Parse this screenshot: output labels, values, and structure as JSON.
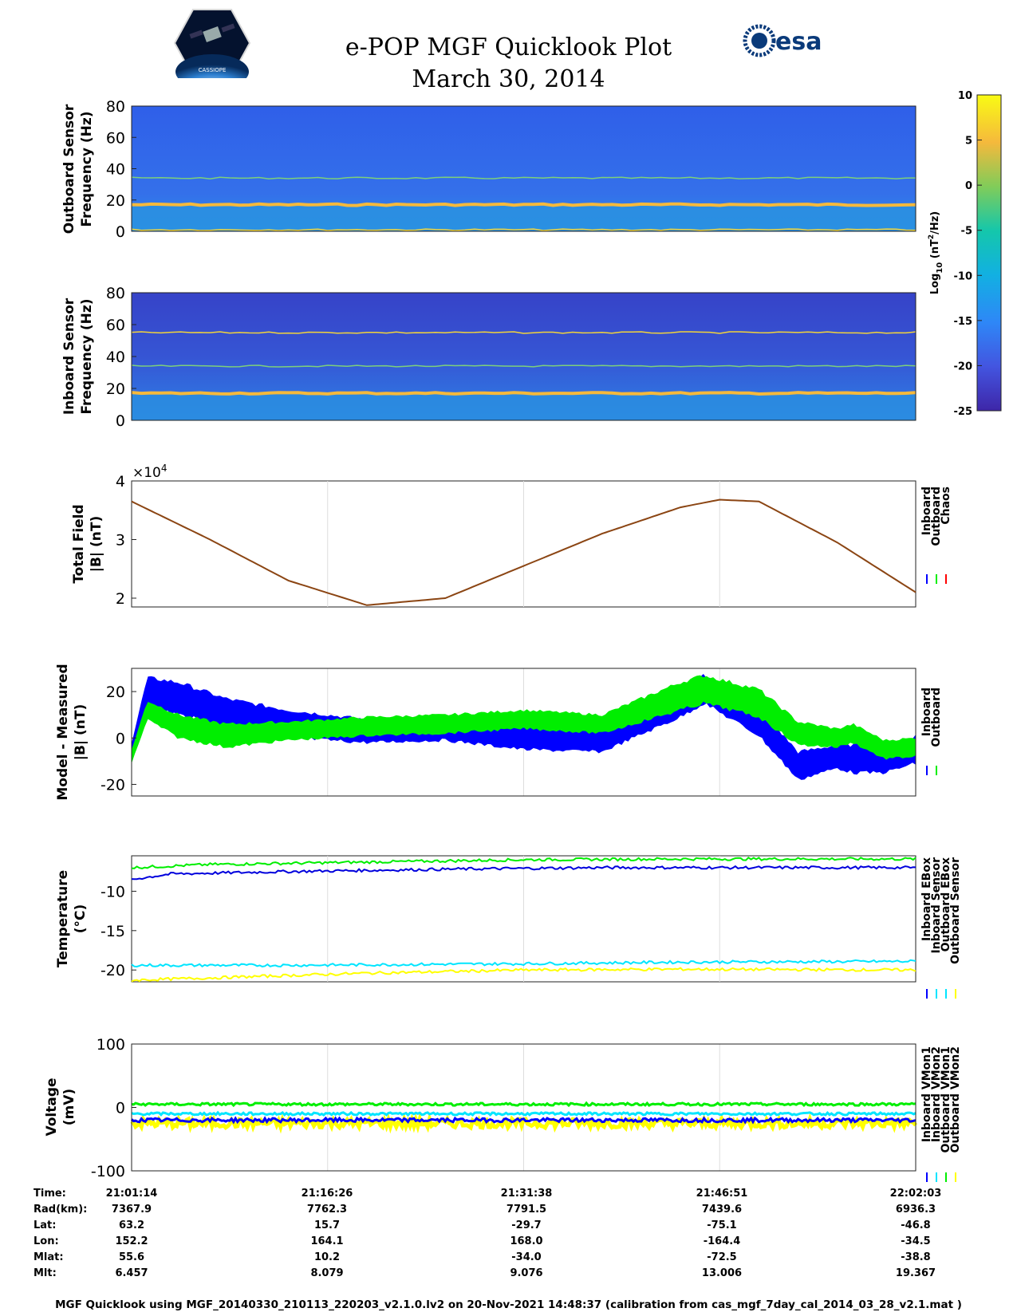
{
  "header": {
    "title_line1": "e-POP MGF Quicklook Plot",
    "title_line2": "March 30, 2014",
    "left_logo": "cassiope-logo",
    "left_logo_text": "CASSIOPE",
    "right_logo_text": "esa"
  },
  "colors": {
    "inboard": "#0000ff",
    "outboard": "#00ee00",
    "chaos": "#ff0000",
    "total_field_line": "#8b4513",
    "inboard_sensor_temp": "#0000dd",
    "outboard_sensor_temp": "#ffff00",
    "cyan": "#00e5ff"
  },
  "colorbar": {
    "label_main": "Log",
    "label_sub": "10",
    "label_unit": "(nT",
    "label_sup": "2",
    "label_end": "/Hz)",
    "ticks": [
      "10",
      "5",
      "0",
      "-5",
      "-10",
      "-15",
      "-20",
      "-25"
    ],
    "range": [
      -25,
      10
    ]
  },
  "chart_data": [
    {
      "type": "heatmap",
      "ylabel_line1": "Outboard Sensor",
      "ylabel_line2": "Frequency (Hz)",
      "ylim": [
        0,
        80
      ],
      "yticks": [
        "80",
        "60",
        "40",
        "20",
        "0"
      ],
      "feature_lines_hz": [
        17,
        34,
        1
      ]
    },
    {
      "type": "heatmap",
      "ylabel_line1": "Inboard Sensor",
      "ylabel_line2": "Frequency (Hz)",
      "ylim": [
        0,
        80
      ],
      "yticks": [
        "80",
        "60",
        "40",
        "20",
        "0"
      ],
      "feature_lines_hz": [
        17,
        34,
        55
      ]
    },
    {
      "type": "line",
      "ylabel_line1": "Total Field",
      "ylabel_line2": "|B| (nT)",
      "exponent_label": "×10",
      "exponent_sup": "4",
      "ylim": [
        1.85,
        4
      ],
      "yticks": [
        "4",
        "3",
        "2"
      ],
      "x": [
        0,
        0.1,
        0.2,
        0.3,
        0.4,
        0.5,
        0.6,
        0.7,
        0.75,
        0.8,
        0.9,
        1.0
      ],
      "values": [
        3.65,
        3.0,
        2.3,
        1.88,
        2.0,
        2.55,
        3.1,
        3.55,
        3.68,
        3.65,
        2.95,
        2.1
      ],
      "legend": [
        "Inboard",
        "Outboard",
        "Chaos"
      ]
    },
    {
      "type": "line",
      "ylabel_line1": "Model - Measured",
      "ylabel_line2": "|B| (nT)",
      "ylim": [
        -25,
        30
      ],
      "yticks": [
        "20",
        "0",
        "-20"
      ],
      "series": [
        {
          "name": "Inboard",
          "x": [
            0,
            0.02,
            0.06,
            0.12,
            0.2,
            0.3,
            0.4,
            0.5,
            0.6,
            0.7,
            0.73,
            0.8,
            0.85,
            0.9,
            0.92,
            0.96,
            1.0
          ],
          "center": [
            -5,
            20,
            17,
            11,
            6,
            3,
            4,
            0,
            -1,
            15,
            21,
            7,
            -12,
            -8,
            -9,
            -10,
            -5
          ],
          "amplitude": [
            3,
            6,
            7,
            6,
            6,
            5,
            5,
            5,
            5,
            6,
            6,
            6,
            6,
            5,
            6,
            5,
            6
          ]
        },
        {
          "name": "Outboard",
          "x": [
            0,
            0.02,
            0.06,
            0.12,
            0.2,
            0.3,
            0.4,
            0.5,
            0.6,
            0.7,
            0.73,
            0.8,
            0.85,
            0.9,
            0.92,
            0.96,
            1.0
          ],
          "center": [
            -8,
            12,
            5,
            1,
            3,
            5,
            6,
            8,
            6,
            18,
            21,
            15,
            2,
            0,
            2,
            -5,
            -4
          ],
          "amplitude": [
            3,
            4,
            5,
            5,
            4,
            4,
            4,
            4,
            4,
            6,
            6,
            6,
            5,
            4,
            4,
            4,
            4
          ]
        }
      ],
      "legend": [
        "Inboard",
        "Outboard"
      ]
    },
    {
      "type": "line",
      "ylabel_line1": "Temperature",
      "ylabel_line2": "(°C)",
      "ylim": [
        -21.5,
        -5.5
      ],
      "yticks": [
        "-10",
        "-15",
        "-20"
      ],
      "series": [
        {
          "name": "Inboard EBox",
          "x": [
            0,
            0.1,
            0.3,
            0.5,
            0.7,
            1.0
          ],
          "values": [
            -7.0,
            -6.6,
            -6.3,
            -6.0,
            -5.9,
            -5.9
          ]
        },
        {
          "name": "Inboard Sensor",
          "x": [
            0,
            0.05,
            0.2,
            0.4,
            0.6,
            0.8,
            1.0
          ],
          "values": [
            -8.5,
            -7.8,
            -7.5,
            -7.2,
            -7.0,
            -7.0,
            -7.0
          ]
        },
        {
          "name": "Outboard EBox",
          "x": [
            0,
            0.2,
            0.5,
            0.7,
            1.0
          ],
          "values": [
            -19.4,
            -19.4,
            -19.2,
            -19.0,
            -18.9
          ]
        },
        {
          "name": "Outboard Sensor",
          "x": [
            0,
            0.1,
            0.3,
            0.5,
            0.7,
            1.0
          ],
          "values": [
            -21.3,
            -21.0,
            -20.4,
            -20.0,
            -19.9,
            -20.0
          ]
        }
      ],
      "legend": [
        "Inboard EBox",
        "Inboard Sensor",
        "Outboard EBox",
        "Outboard Sensor"
      ]
    },
    {
      "type": "line",
      "ylabel_line1": "Voltage",
      "ylabel_line2": "(mV)",
      "ylim": [
        -100,
        100
      ],
      "yticks": [
        "100",
        "0",
        "-100"
      ],
      "series": [
        {
          "name": "Inboard VMon1",
          "level": -20
        },
        {
          "name": "Inboard VMon2",
          "level": 5
        },
        {
          "name": "Outboard VMon1",
          "level": -10
        },
        {
          "name": "Outboard VMon2",
          "level": -25
        }
      ],
      "legend": [
        "Inboard VMon1",
        "Inboard VMon2",
        "Outboard VMon1",
        "Outboard VMon2"
      ]
    }
  ],
  "ephemeris": {
    "labels": [
      "Time:",
      "Rad(km):",
      "Lat:",
      "Lon:",
      "Mlat:",
      "Mlt:"
    ],
    "columns": [
      [
        "21:01:14",
        "7367.9",
        "63.2",
        "152.2",
        "55.6",
        "6.457"
      ],
      [
        "21:16:26",
        "7762.3",
        "15.7",
        "164.1",
        "10.2",
        "8.079"
      ],
      [
        "21:31:38",
        "7791.5",
        "-29.7",
        "168.0",
        "-34.0",
        "9.076"
      ],
      [
        "21:46:51",
        "7439.6",
        "-75.1",
        "-164.4",
        "-72.5",
        "13.006"
      ],
      [
        "22:02:03",
        "6936.3",
        "-46.8",
        "-34.5",
        "-38.8",
        "19.367"
      ]
    ]
  },
  "footer": "MGF Quicklook using MGF_20140330_210113_220203_v2.1.0.lv2 on 20-Nov-2021 14:48:37 (calibration from cas_mgf_7day_cal_2014_03_28_v2.1.mat )"
}
